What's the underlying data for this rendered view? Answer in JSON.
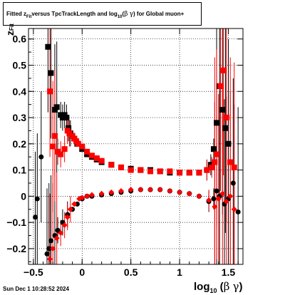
{
  "title": {
    "prefix": "Fitted  z",
    "sub": "Fit",
    "middle": "   versus TpcTrackLength and log",
    "sub2": "10",
    "paren": " (",
    "beta": "β",
    "gamma": "γ",
    "suffix": ") for Global muon+"
  },
  "timestamp": "Sun Dec  1 10:28:52 2024",
  "xlabel": {
    "main": "log",
    "sub": "10",
    "expr_open": " (",
    "beta": "β",
    "gamma": "γ",
    "expr_close": ")"
  },
  "ylabel": {
    "main": "z",
    "sub": "Fit"
  },
  "chart_data": {
    "type": "scatter",
    "xlim": [
      -0.55,
      1.65
    ],
    "ylim": [
      -0.26,
      0.64
    ],
    "grid": true,
    "x_ticks": [
      -0.5,
      0,
      0.5,
      1,
      1.5
    ],
    "x_tick_labels": [
      "−0.5",
      "0",
      "0.5",
      "1",
      "1.5"
    ],
    "y_ticks": [
      -0.2,
      -0.1,
      0,
      0.1,
      0.2,
      0.3,
      0.4,
      0.5,
      0.6
    ],
    "y_tick_labels": [
      "−0.2",
      "−0.1",
      "0",
      "0.1",
      "0.2",
      "0.3",
      "0.4",
      "0.5",
      "0.6"
    ],
    "colors": {
      "black": "#000000",
      "red": "#ff0000"
    },
    "series": [
      {
        "color": "#000000",
        "marker": "square",
        "points": [
          [
            -0.35,
            0.57
          ],
          [
            -0.32,
            0.47
          ],
          [
            -0.28,
            0.33
          ],
          [
            -0.26,
            0.34
          ],
          [
            -0.22,
            0.31
          ],
          [
            -0.2,
            0.3
          ],
          [
            -0.18,
            0.31
          ],
          [
            -0.16,
            0.3
          ],
          [
            -0.14,
            0.26
          ],
          [
            -0.12,
            0.24
          ],
          [
            -0.1,
            0.23
          ],
          [
            -0.08,
            0.22
          ],
          [
            -0.05,
            0.2
          ],
          [
            0.0,
            0.18
          ],
          [
            0.05,
            0.16
          ],
          [
            0.1,
            0.15
          ],
          [
            0.15,
            0.14
          ],
          [
            0.2,
            0.13
          ],
          [
            0.3,
            0.12
          ],
          [
            0.4,
            0.11
          ],
          [
            0.5,
            0.105
          ],
          [
            0.6,
            0.1
          ],
          [
            0.7,
            0.1
          ],
          [
            0.8,
            0.095
          ],
          [
            0.9,
            0.09
          ],
          [
            1.0,
            0.09
          ],
          [
            1.1,
            0.09
          ],
          [
            1.2,
            0.09
          ],
          [
            1.28,
            0.1
          ],
          [
            1.32,
            0.12
          ],
          [
            1.35,
            0.18
          ],
          [
            1.38,
            0.28
          ],
          [
            1.41,
            0.42
          ],
          [
            1.44,
            0.33
          ],
          [
            1.47,
            0.26
          ],
          [
            1.5,
            0.2
          ]
        ]
      },
      {
        "color": "#000000",
        "marker": "circle",
        "points": [
          [
            -0.48,
            -0.08
          ],
          [
            -0.46,
            -0.01
          ],
          [
            -0.42,
            0.15
          ],
          [
            -0.36,
            -0.22
          ],
          [
            -0.34,
            -0.2
          ],
          [
            -0.32,
            -0.17
          ],
          [
            -0.28,
            -0.15
          ],
          [
            -0.25,
            -0.13
          ],
          [
            -0.2,
            -0.1
          ],
          [
            -0.15,
            -0.07
          ],
          [
            -0.1,
            -0.05
          ],
          [
            -0.05,
            -0.03
          ],
          [
            0.0,
            -0.01
          ],
          [
            0.05,
            0.0
          ],
          [
            0.1,
            0.0
          ],
          [
            0.2,
            0.005
          ],
          [
            0.3,
            0.01
          ],
          [
            0.4,
            0.015
          ],
          [
            0.5,
            0.02
          ],
          [
            0.6,
            0.025
          ],
          [
            0.7,
            0.025
          ],
          [
            0.8,
            0.025
          ],
          [
            0.9,
            0.02
          ],
          [
            1.0,
            0.015
          ],
          [
            1.1,
            0.01
          ],
          [
            1.2,
            0.0
          ],
          [
            1.3,
            -0.02
          ],
          [
            1.35,
            -0.01
          ],
          [
            1.38,
            0.02
          ],
          [
            1.41,
            0.0
          ],
          [
            1.46,
            -0.03
          ],
          [
            1.5,
            -0.01
          ],
          [
            1.55,
            0.05
          ],
          [
            1.6,
            -0.06
          ]
        ]
      },
      {
        "color": "#ff0000",
        "marker": "square",
        "points": [
          [
            -0.33,
            0.4
          ],
          [
            -0.3,
            0.19
          ],
          [
            -0.28,
            0.23
          ],
          [
            -0.25,
            0.17
          ],
          [
            -0.22,
            0.16
          ],
          [
            -0.18,
            0.18
          ],
          [
            -0.15,
            0.25
          ],
          [
            -0.13,
            0.24
          ],
          [
            -0.1,
            0.23
          ],
          [
            -0.08,
            0.22
          ],
          [
            -0.06,
            0.21
          ],
          [
            -0.04,
            0.2
          ],
          [
            0.0,
            0.19
          ],
          [
            0.05,
            0.17
          ],
          [
            0.1,
            0.155
          ],
          [
            0.15,
            0.145
          ],
          [
            0.2,
            0.135
          ],
          [
            0.3,
            0.12
          ],
          [
            0.4,
            0.11
          ],
          [
            0.5,
            0.1
          ],
          [
            0.6,
            0.1
          ],
          [
            0.7,
            0.095
          ],
          [
            0.8,
            0.095
          ],
          [
            0.9,
            0.095
          ],
          [
            1.0,
            0.09
          ],
          [
            1.1,
            0.09
          ],
          [
            1.2,
            0.09
          ],
          [
            1.28,
            0.1
          ],
          [
            1.33,
            0.11
          ],
          [
            1.36,
            0.13
          ],
          [
            1.38,
            0.16
          ],
          [
            1.42,
            0.42
          ],
          [
            1.45,
            0.48
          ],
          [
            1.48,
            0.3
          ],
          [
            1.52,
            0.13
          ],
          [
            1.56,
            0.11
          ]
        ]
      },
      {
        "color": "#ff0000",
        "marker": "diamond",
        "points": [
          [
            -0.33,
            -0.24
          ],
          [
            -0.3,
            -0.2
          ],
          [
            -0.26,
            -0.16
          ],
          [
            -0.22,
            -0.14
          ],
          [
            -0.18,
            -0.11
          ],
          [
            -0.15,
            -0.08
          ],
          [
            -0.12,
            -0.05
          ],
          [
            -0.08,
            -0.03
          ],
          [
            -0.03,
            -0.01
          ],
          [
            0.0,
            -0.005
          ],
          [
            0.05,
            0.0
          ],
          [
            0.1,
            0.005
          ],
          [
            0.2,
            0.01
          ],
          [
            0.3,
            0.015
          ],
          [
            0.4,
            0.02
          ],
          [
            0.5,
            0.025
          ],
          [
            0.6,
            0.025
          ],
          [
            0.7,
            0.025
          ],
          [
            0.8,
            0.025
          ],
          [
            0.9,
            0.02
          ],
          [
            1.0,
            0.015
          ],
          [
            1.1,
            0.01
          ],
          [
            1.2,
            0.0
          ],
          [
            1.3,
            -0.015
          ],
          [
            1.36,
            -0.04
          ],
          [
            1.4,
            -0.01
          ],
          [
            1.44,
            0.01
          ],
          [
            1.48,
            -0.02
          ],
          [
            1.52,
            0.0
          ],
          [
            1.56,
            -0.05
          ]
        ]
      }
    ]
  }
}
